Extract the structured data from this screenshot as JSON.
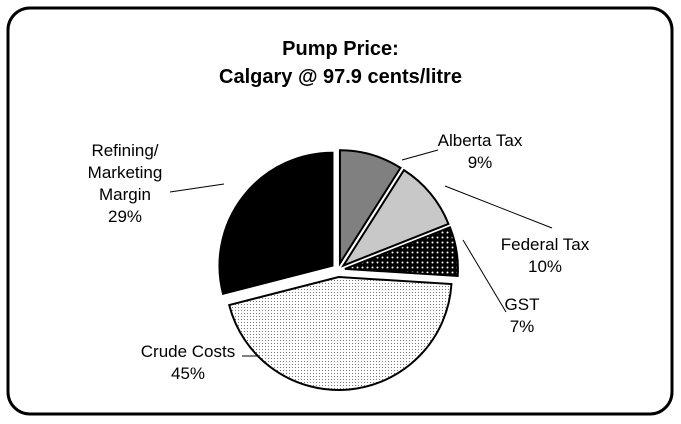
{
  "chart_data": {
    "type": "pie",
    "title": "Pump Price:",
    "subtitle": "Calgary @ 97.9 cents/litre",
    "categories": [
      "Alberta Tax",
      "Federal Tax",
      "GST",
      "Crude Costs",
      "Refining/ Marketing Margin"
    ],
    "values": [
      9,
      10,
      7,
      45,
      29
    ],
    "value_labels": [
      "9%",
      "10%",
      "7%",
      "45%",
      "29%"
    ],
    "colors": [
      "#808080",
      "#c8c8c8",
      "url(#dots-on-black)",
      "url(#dots-on-white)",
      "#000000"
    ]
  }
}
